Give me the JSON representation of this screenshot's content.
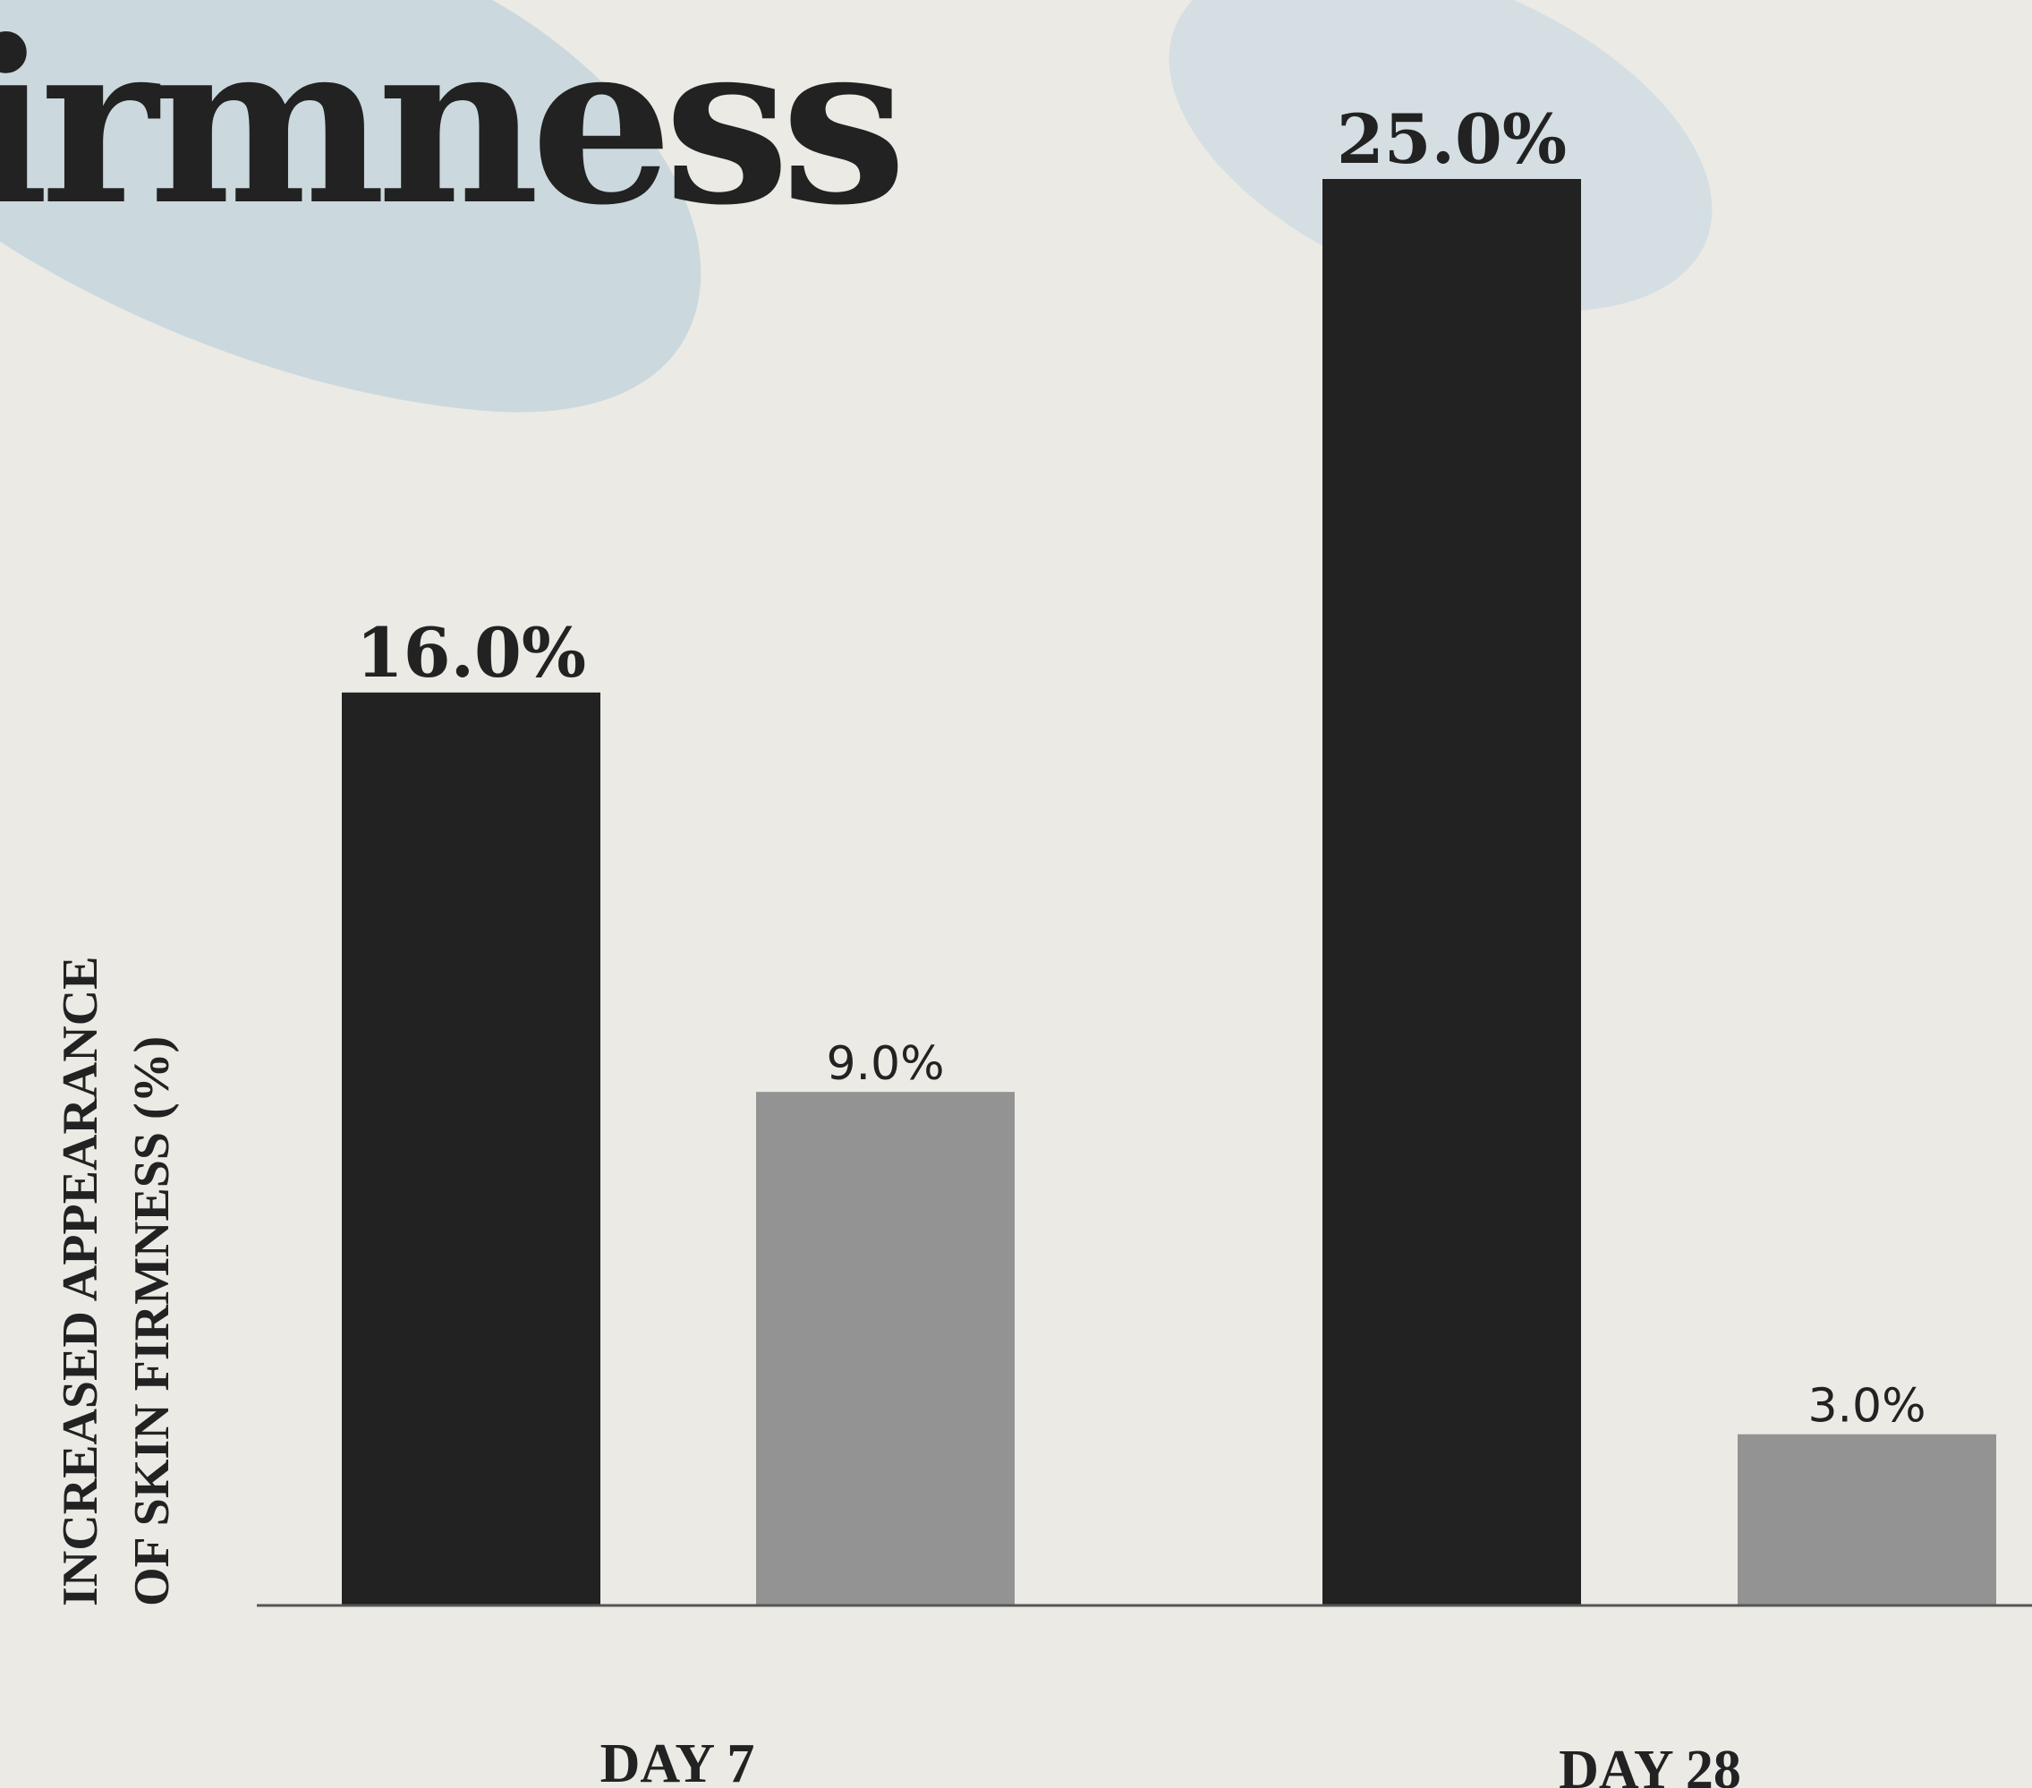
{
  "chart_data": {
    "type": "bar",
    "title": "irmness",
    "ylabel": [
      "INCREASED APPEARANCE",
      "OF SKIN FIRMNESS (%)"
    ],
    "categories": [
      "DAY 7",
      "DAY 28"
    ],
    "series": [
      {
        "values": [
          16.0,
          25.0
        ],
        "data_labels": [
          "16.0%",
          "25.0%"
        ],
        "color": "#222222"
      },
      {
        "values": [
          9.0,
          3.0
        ],
        "data_labels": [
          "9.0%",
          "3.0%"
        ],
        "color": "#939393"
      }
    ],
    "ylim": [
      0,
      25
    ],
    "grid": false
  },
  "colors": {
    "background": "#EBEAE5",
    "blob": "#CBD9DE",
    "text": "#222222",
    "baseline": "#555555"
  }
}
